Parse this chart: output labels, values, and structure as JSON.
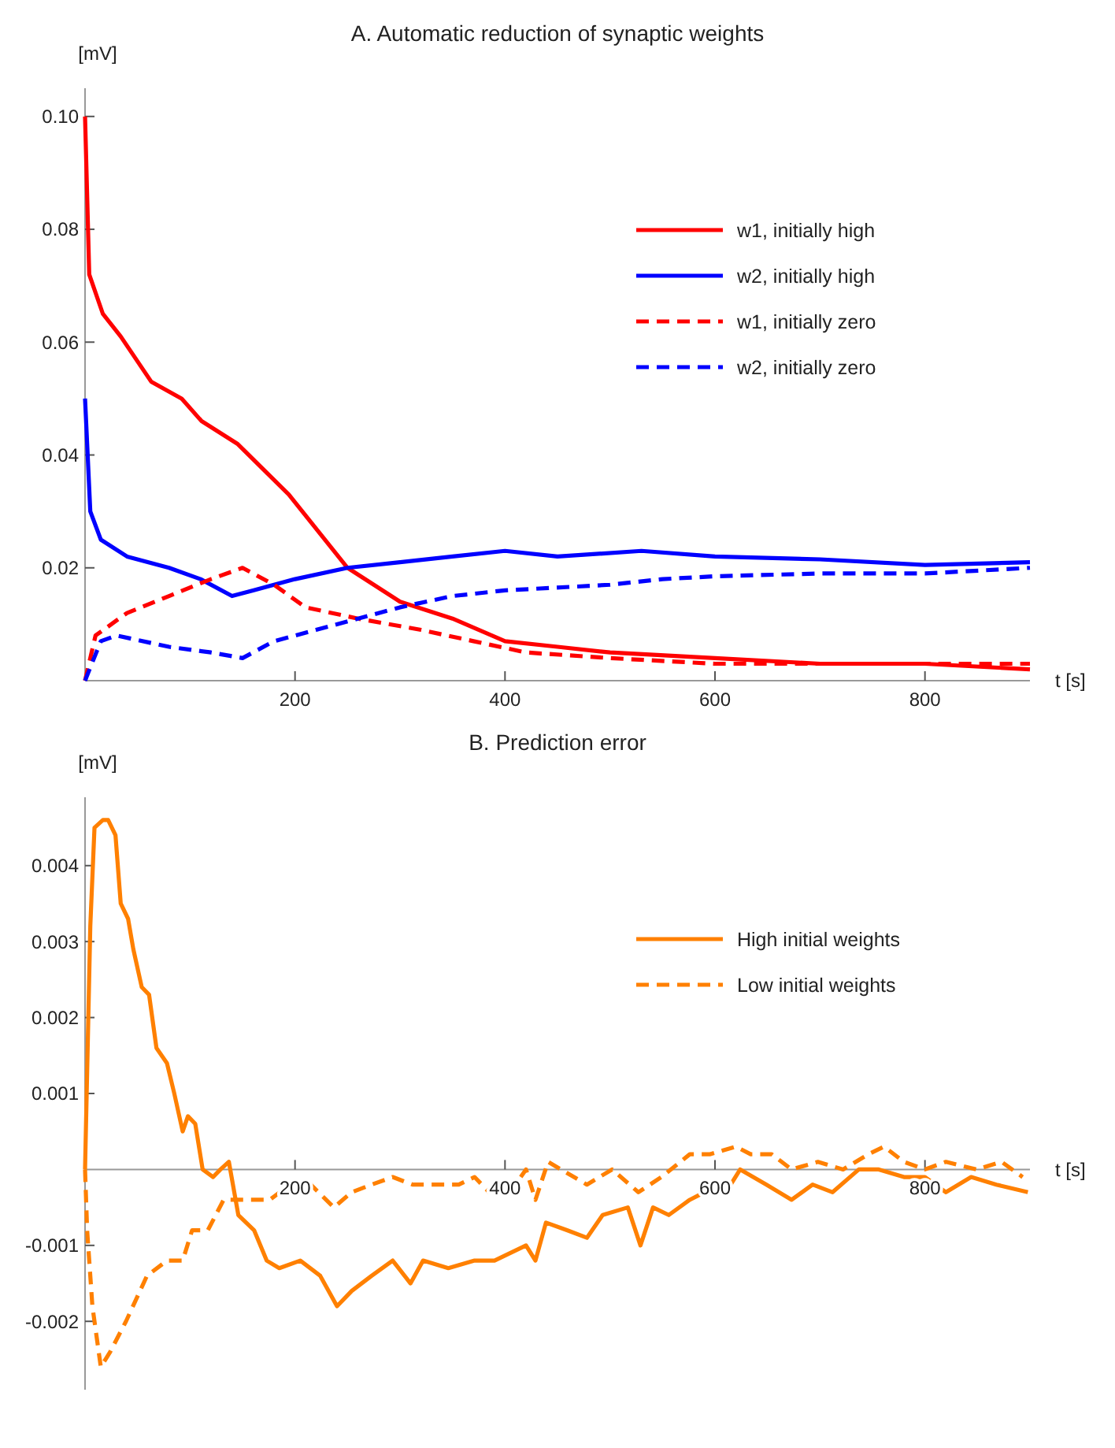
{
  "chart_data": [
    {
      "type": "line",
      "title": "A. Automatic reduction of synaptic weights",
      "xlabel": "t [s]",
      "ylabel": "[mV]",
      "xlim": [
        0,
        900
      ],
      "ylim": [
        0,
        0.105
      ],
      "xticks": [
        200,
        400,
        600,
        800
      ],
      "yticks": [
        0.02,
        0.04,
        0.06,
        0.08,
        {
          "value": 0.1,
          "label": "0.10"
        }
      ],
      "grid": false,
      "legend": "right",
      "marker": "none",
      "series": [
        {
          "name": "w1, initially high",
          "color": "#ff0000",
          "line_style": "solid",
          "x": [
            0,
            4,
            17,
            34,
            63,
            92,
            111,
            145,
            194,
            250,
            300,
            350,
            400,
            450,
            500,
            600,
            700,
            800,
            900
          ],
          "values": [
            0.1,
            0.072,
            0.065,
            0.061,
            0.053,
            0.05,
            0.046,
            0.042,
            0.033,
            0.02,
            0.014,
            0.011,
            0.007,
            0.006,
            0.005,
            0.004,
            0.003,
            0.003,
            0.002
          ]
        },
        {
          "name": "w2, initially high",
          "color": "#0000ff",
          "line_style": "solid",
          "x": [
            0,
            5,
            15,
            40,
            80,
            110,
            140,
            160,
            200,
            250,
            300,
            350,
            400,
            450,
            530,
            600,
            700,
            800,
            900
          ],
          "values": [
            0.05,
            0.03,
            0.025,
            0.022,
            0.02,
            0.018,
            0.015,
            0.016,
            0.018,
            0.02,
            0.021,
            0.022,
            0.023,
            0.022,
            0.023,
            0.022,
            0.0215,
            0.0205,
            0.021
          ]
        },
        {
          "name": "w1, initially zero",
          "color": "#ff0000",
          "line_style": "dashed",
          "x": [
            0,
            10,
            40,
            80,
            120,
            150,
            180,
            210,
            260,
            320,
            370,
            420,
            500,
            600,
            700,
            800,
            900
          ],
          "values": [
            0,
            0.008,
            0.012,
            0.015,
            0.018,
            0.02,
            0.017,
            0.013,
            0.011,
            0.009,
            0.007,
            0.005,
            0.004,
            0.003,
            0.003,
            0.003,
            0.003
          ]
        },
        {
          "name": "w2, initially zero",
          "color": "#0000ff",
          "line_style": "dashed",
          "x": [
            0,
            15,
            30,
            80,
            120,
            150,
            180,
            220,
            260,
            300,
            350,
            400,
            500,
            550,
            600,
            700,
            800,
            900
          ],
          "values": [
            0,
            0.007,
            0.008,
            0.006,
            0.005,
            0.004,
            0.007,
            0.009,
            0.011,
            0.013,
            0.015,
            0.016,
            0.017,
            0.018,
            0.0185,
            0.019,
            0.019,
            0.02
          ]
        }
      ]
    },
    {
      "type": "line",
      "title": "B. Prediction error",
      "xlabel": "t [s]",
      "ylabel": "[mV]",
      "xlim": [
        0,
        900
      ],
      "ylim": [
        -0.0029,
        0.0049
      ],
      "xticks": [
        200,
        400,
        600,
        800
      ],
      "yticks": [
        -0.002,
        -0.001,
        0.001,
        0.002,
        0.003,
        0.004
      ],
      "grid": false,
      "legend": "right",
      "marker": "none",
      "series": [
        {
          "name": "High initial weights",
          "color": "#ff8000",
          "line_style": "solid",
          "x": [
            0,
            5,
            9,
            17,
            22,
            29,
            34,
            41,
            46,
            54,
            61,
            68,
            78,
            85,
            93,
            98,
            105,
            112,
            122,
            129,
            137,
            146,
            161,
            173,
            185,
            205,
            224,
            240,
            254,
            273,
            293,
            310,
            322,
            346,
            371,
            390,
            420,
            429,
            439,
            459,
            478,
            493,
            517,
            529,
            541,
            556,
            576,
            590,
            615,
            624,
            649,
            673,
            693,
            712,
            737,
            756,
            780,
            800,
            820,
            844,
            868,
            898
          ],
          "values": [
            0,
            0.0032,
            0.0045,
            0.0046,
            0.0046,
            0.0044,
            0.0035,
            0.0033,
            0.0029,
            0.0024,
            0.0023,
            0.0016,
            0.0014,
            0.001,
            0.0005,
            0.0007,
            0.0006,
            0,
            -0.0001,
            0,
            0.0001,
            -0.0006,
            -0.0008,
            -0.0012,
            -0.0013,
            -0.0012,
            -0.0014,
            -0.0018,
            -0.0016,
            -0.0014,
            -0.0012,
            -0.0015,
            -0.0012,
            -0.0013,
            -0.0012,
            -0.0012,
            -0.001,
            -0.0012,
            -0.0007,
            -0.0008,
            -0.0009,
            -0.0006,
            -0.0005,
            -0.001,
            -0.0005,
            -0.0006,
            -0.0004,
            -0.0003,
            -0.0002,
            0,
            -0.0002,
            -0.0004,
            -0.0002,
            -0.0003,
            0,
            0,
            -0.0001,
            -0.0001,
            -0.0003,
            -0.0001,
            -0.0002,
            -0.0003
          ]
        },
        {
          "name": "Low initial weights",
          "color": "#ff8000",
          "line_style": "dashed",
          "x": [
            0,
            2,
            7,
            15,
            24,
            39,
            59,
            78,
            93,
            102,
            117,
            132,
            151,
            176,
            195,
            215,
            237,
            254,
            273,
            293,
            312,
            332,
            356,
            371,
            385,
            410,
            420,
            429,
            441,
            478,
            502,
            527,
            549,
            576,
            595,
            620,
            634,
            654,
            673,
            698,
            722,
            746,
            761,
            780,
            800,
            820,
            849,
            873,
            893
          ],
          "values": [
            0,
            -0.0008,
            -0.0018,
            -0.0026,
            -0.0024,
            -0.002,
            -0.0014,
            -0.0012,
            -0.0012,
            -0.0008,
            -0.0008,
            -0.0004,
            -0.0004,
            -0.0004,
            -0.0002,
            -0.0002,
            -0.0005,
            -0.0003,
            -0.0002,
            -0.0001,
            -0.0002,
            -0.0002,
            -0.0002,
            -0.0001,
            -0.0003,
            -0.0002,
            0,
            -0.0004,
            0.0001,
            -0.0002,
            0,
            -0.0003,
            -0.0001,
            0.0002,
            0.0002,
            0.0003,
            0.0002,
            0.0002,
            0,
            0.0001,
            0,
            0.0002,
            0.0003,
            0.0001,
            0,
            0.0001,
            0,
            0.0001,
            -0.0001
          ]
        }
      ]
    }
  ]
}
